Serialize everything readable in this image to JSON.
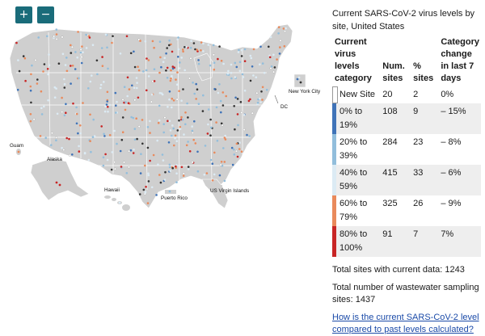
{
  "map": {
    "zoom_in_label": "+",
    "zoom_out_label": "−",
    "labels": {
      "guam": "Guam",
      "alaska": "Alaska",
      "hawaii": "Hawaii",
      "puerto_rico": "Puerto Rico",
      "virgin_islands": "US Virgin Islands",
      "dc": "DC",
      "nyc": "New York City"
    },
    "colors": {
      "land": "#cfcfcf",
      "state_border": "#ffffff",
      "new_site": "#ffffff",
      "cat_0_19": "#3f73b8",
      "cat_20_39": "#92bedc",
      "cat_40_59": "#dcebf4",
      "cat_60_79": "#e98a5c",
      "cat_80_100": "#c82525",
      "no_recent": "#333333"
    }
  },
  "legend": {
    "title": "Current SARS-CoV-2 virus levels by site, United States",
    "headers": {
      "category": "Current virus levels category",
      "sites": "Num. sites",
      "percent": "% sites",
      "change": "Category change in last 7 days"
    },
    "rows": [
      {
        "category": "New Site",
        "sites": "20",
        "percent": "2",
        "change": "0%",
        "color": "#ffffff"
      },
      {
        "category": "0% to 19%",
        "sites": "108",
        "percent": "9",
        "change": "– 15%",
        "color": "#3f73b8"
      },
      {
        "category": "20% to 39%",
        "sites": "284",
        "percent": "23",
        "change": "– 8%",
        "color": "#92bedc"
      },
      {
        "category": "40% to 59%",
        "sites": "415",
        "percent": "33",
        "change": "– 6%",
        "color": "#dcebf4"
      },
      {
        "category": "60% to 79%",
        "sites": "325",
        "percent": "26",
        "change": "– 9%",
        "color": "#e98a5c"
      },
      {
        "category": "80% to 100%",
        "sites": "91",
        "percent": "7",
        "change": "7%",
        "color": "#c82525"
      }
    ]
  },
  "totals": {
    "current_data": "Total sites with current data: 1243",
    "all_sites": "Total number of wastewater sampling sites: 1437"
  },
  "link": {
    "text": "How is the current SARS-CoV-2 level compared to past levels calculated?"
  }
}
